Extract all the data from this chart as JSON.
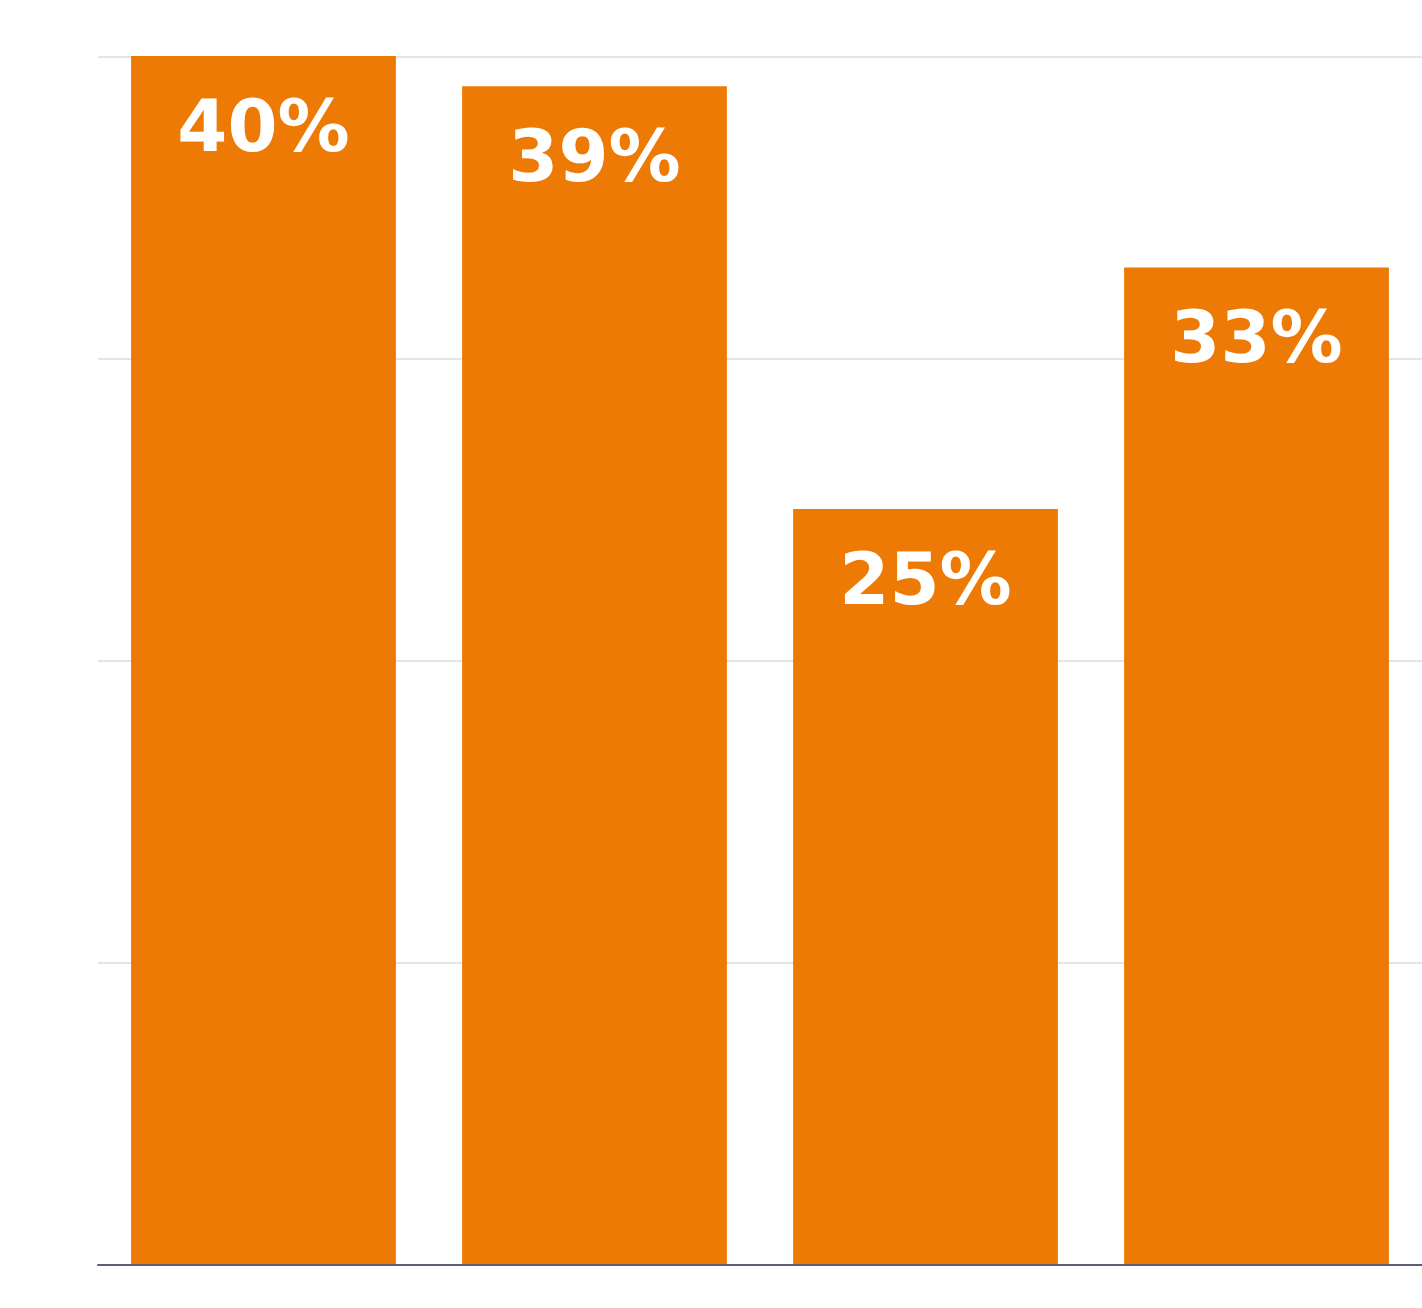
{
  "chart_data": {
    "type": "bar",
    "categories": [
      null,
      null,
      null,
      null
    ],
    "values": [
      40,
      39,
      25,
      33
    ],
    "color": "#ee7a06",
    "value_labels": [
      "40%",
      "39%",
      "25%",
      "33%"
    ],
    "ylim": [
      0,
      40
    ],
    "yticks": [
      0,
      10,
      20,
      30,
      40
    ],
    "grid": "y",
    "tick_labels": false
  }
}
